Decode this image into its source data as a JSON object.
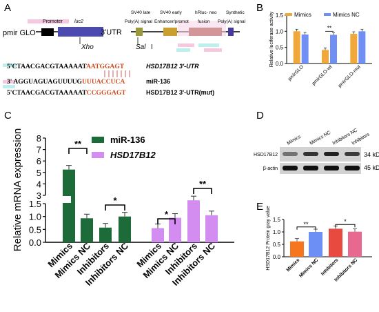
{
  "figure": {
    "panel_letters": [
      "A",
      "B",
      "C",
      "D",
      "E"
    ]
  },
  "panelA": {
    "construct_name": "pmir GLO",
    "labels_top": {
      "promoter": "Promoter",
      "luc2": "luc2",
      "sv40_late_1": "SV40 late",
      "sv40_late_2": "Poly(A) signal",
      "sv40_early_1": "SV40 early",
      "sv40_early_2": "Enhancer/promot",
      "hrluc_1": "hRluc- neo",
      "hrluc_2": "fusion",
      "synthetic_1": "Synthetic",
      "synthetic_2": "Poly(A) signal"
    },
    "utr_label": "3'UTR",
    "xho": "Xho",
    "sal": "Sal",
    "sal_suffix": "I",
    "seq1": {
      "prefix": "5'CTAACGACGTAAAAAT",
      "highlight": "AATGGAGT",
      "label": "HSD17B12 3'-UTR"
    },
    "seq2": {
      "prefix": "3' AGGUAGUAGUUUUG",
      "highlight": "UUUACCUCA",
      "label": "miR-136"
    },
    "seq3": {
      "prefix": "5'CTAACGACGTAAAAAT",
      "highlight": "CCGGGAGT",
      "label": "HSD17B12 3'-UTR(mut)"
    }
  },
  "colors": {
    "orange": "#f0a83a",
    "blue": "#6f8ff5",
    "dark_green": "#1e6b3a",
    "violet": "#d38cf0",
    "e_orange": "#f5761f",
    "e_blue": "#6b8ff5",
    "e_red": "#e94a3f",
    "e_pink": "#e8698f"
  },
  "chart_data": [
    {
      "panel": "B",
      "type": "bar",
      "categories": [
        "pmirGLO",
        "pmirGLO-wt",
        "pmirGLO-mut"
      ],
      "series": [
        {
          "name": "Mimics",
          "values": [
            1.0,
            0.42,
            0.92
          ]
        },
        {
          "name": "Mimics NC",
          "values": [
            0.9,
            0.89,
            1.0
          ]
        }
      ],
      "ylabel": "Relative luciferase activity",
      "ylim": [
        0,
        1.5
      ],
      "yticks": [
        "0.0",
        "0.5",
        "1.0",
        "1.5"
      ],
      "significance": [
        "**"
      ]
    },
    {
      "panel": "C",
      "type": "bar",
      "ylabel": "Relative mRNA expression",
      "categories": [
        "Mimics",
        "Mimics NC",
        "Inhibitors",
        "Inhibitors NC"
      ],
      "series": [
        {
          "name": "miR-136",
          "values": [
            5.25,
            0.93,
            0.57,
            1.0
          ]
        },
        {
          "name": "HSD17B12",
          "values": [
            0.55,
            0.95,
            2.1,
            1.05
          ]
        }
      ],
      "yticks_low": [
        "0.0",
        "0.5",
        "1.0",
        "1.5"
      ],
      "yticks_high": [
        "3",
        "4",
        "5",
        "6",
        "7",
        "8"
      ],
      "significance": [
        "**",
        "*",
        "*",
        "**"
      ]
    },
    {
      "panel": "E",
      "type": "bar",
      "categories": [
        "Mimics",
        "Mimics NC",
        "Inhibitors",
        "Inhibitors NC"
      ],
      "values": [
        0.62,
        1.0,
        1.13,
        1.01
      ],
      "ylabel": "HSD17B12 Protein gray value",
      "ylim": [
        0,
        1.5
      ],
      "yticks": [
        "0.0",
        "0.5",
        "1.0",
        "1.5"
      ],
      "significance": [
        "**",
        "*"
      ]
    }
  ],
  "panelD": {
    "lanes": [
      "Mimics",
      "Mimics NC",
      "Inhibitors NC",
      "Inhibitors"
    ],
    "rows": [
      "HSD17B12",
      "β-actin"
    ],
    "sizes": [
      "34 kD",
      "45 kD"
    ]
  }
}
